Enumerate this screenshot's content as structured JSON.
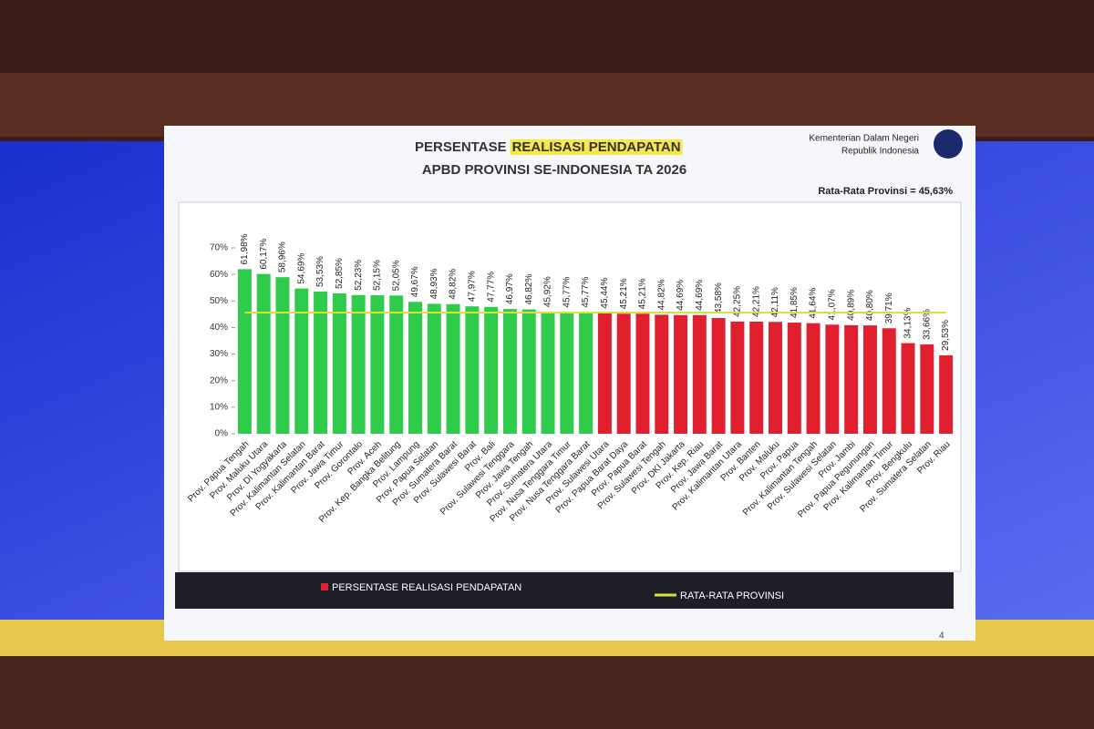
{
  "chart_data": {
    "type": "bar",
    "title_lead": "PERSENTASE",
    "title_highlight": "REALISASI PENDAPATAN",
    "subtitle": "APBD PROVINSI SE-INDONESIA TA 2026",
    "agency": [
      "Kementerian Dalam Negeri",
      "Republik Indonesia"
    ],
    "average": {
      "value": 45.63,
      "label": "Rata-Rata Provinsi = 45,63%",
      "color": "#d8e040"
    },
    "categories": [
      "Prov. Papua Tengah",
      "Prov. Maluku Utara",
      "Prov. DI Yogyakarta",
      "Prov. Kalimantan Selatan",
      "Prov. Kalimantan Barat",
      "Prov. Jawa Timur",
      "Prov. Gorontalo",
      "Prov. Aceh",
      "Prov. Kep. Bangka Belitung",
      "Prov. Lampung",
      "Prov. Papua Selatan",
      "Prov. Sumatera Barat",
      "Prov. Sulawesi Barat",
      "Prov. Bali",
      "Prov. Sulawesi Tenggara",
      "Prov. Jawa Tengah",
      "Prov. Sumatera Utara",
      "Prov. Nusa Tenggara Timur",
      "Prov. Nusa Tenggara Barat",
      "Prov. Sulawesi Utara",
      "Prov. Papua Barat Daya",
      "Prov. Papua Barat",
      "Prov. Sulawesi Tengah",
      "Prov. DKI Jakarta",
      "Prov. Kep. Riau",
      "Prov. Jawa Barat",
      "Prov. Kalimantan Utara",
      "Prov. Banten",
      "Prov. Maluku",
      "Prov. Papua",
      "Prov. Kalimantan Tengah",
      "Prov. Sulawesi Selatan",
      "Prov. Jambi",
      "Prov. Papua Pegunungan",
      "Prov. Kalimantan Timur",
      "Prov. Bengkulu",
      "Prov. Sumatera Selatan",
      "Prov. Riau"
    ],
    "values": [
      61.98,
      60.17,
      58.96,
      54.69,
      53.53,
      52.85,
      52.23,
      52.15,
      52.05,
      49.67,
      48.93,
      48.82,
      47.97,
      47.77,
      46.97,
      46.82,
      45.92,
      45.77,
      45.77,
      45.44,
      45.21,
      45.21,
      44.82,
      44.69,
      44.69,
      43.58,
      42.25,
      42.21,
      42.11,
      41.85,
      41.64,
      41.07,
      40.89,
      40.8,
      39.71,
      34.13,
      33.66,
      29.53
    ],
    "value_labels": [
      "61,98%",
      "60,17%",
      "58,96%",
      "54,69%",
      "53,53%",
      "52,85%",
      "52,23%",
      "52,15%",
      "52,05%",
      "49,67%",
      "48,93%",
      "48,82%",
      "47,97%",
      "47,77%",
      "46,97%",
      "46,82%",
      "45,92%",
      "45,77%",
      "45,77%",
      "45,44%",
      "45,21%",
      "45,21%",
      "44,82%",
      "44,69%",
      "44,69%",
      "43,58%",
      "42,25%",
      "42,21%",
      "42,11%",
      "41,85%",
      "41,64%",
      "41,07%",
      "40,89%",
      "40,80%",
      "39,71%",
      "34,13%",
      "33,66%",
      "29,53%"
    ],
    "colors": [
      "#2ecc4a",
      "#2ecc4a",
      "#2ecc4a",
      "#2ecc4a",
      "#2ecc4a",
      "#2ecc4a",
      "#2ecc4a",
      "#2ecc4a",
      "#2ecc4a",
      "#2ecc4a",
      "#2ecc4a",
      "#2ecc4a",
      "#2ecc4a",
      "#2ecc4a",
      "#2ecc4a",
      "#2ecc4a",
      "#2ecc4a",
      "#2ecc4a",
      "#2ecc4a",
      "#e0202e",
      "#e0202e",
      "#e0202e",
      "#e0202e",
      "#e0202e",
      "#e0202e",
      "#e0202e",
      "#e0202e",
      "#e0202e",
      "#e0202e",
      "#e0202e",
      "#e0202e",
      "#e0202e",
      "#e0202e",
      "#e0202e",
      "#e0202e",
      "#e0202e",
      "#e0202e",
      "#e0202e"
    ],
    "legend": [
      {
        "name": "PERSENTASE REALISASI PENDAPATAN",
        "color": "#e0202e"
      },
      {
        "name": "RATA-RATA PROVINSI",
        "color": "#d8e040"
      }
    ],
    "page_number": "4",
    "ylim": [
      0,
      70
    ],
    "yticks": [
      {
        "value": 0,
        "label": "0%"
      },
      {
        "value": 10,
        "label": "10%"
      },
      {
        "value": 20,
        "label": "20%"
      },
      {
        "value": 30,
        "label": "30%"
      },
      {
        "value": 40,
        "label": "40%"
      },
      {
        "value": 50,
        "label": "50%"
      },
      {
        "value": 60,
        "label": "60%"
      },
      {
        "value": 70,
        "label": "70%"
      }
    ]
  }
}
